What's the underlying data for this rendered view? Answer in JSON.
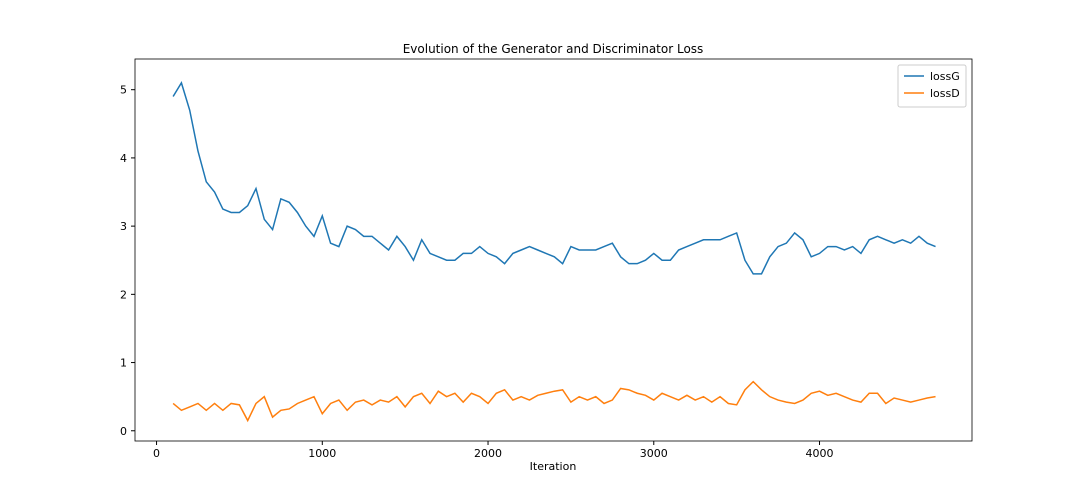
{
  "chart_data": {
    "type": "line",
    "title": "Evolution of the Generator and Discriminator Loss",
    "xlabel": "Iteration",
    "x": [
      100,
      150,
      200,
      250,
      300,
      350,
      400,
      450,
      500,
      550,
      600,
      650,
      700,
      750,
      800,
      850,
      900,
      950,
      1000,
      1050,
      1100,
      1150,
      1200,
      1250,
      1300,
      1350,
      1400,
      1450,
      1500,
      1550,
      1600,
      1650,
      1700,
      1750,
      1800,
      1850,
      1900,
      1950,
      2000,
      2050,
      2100,
      2150,
      2200,
      2250,
      2300,
      2350,
      2400,
      2450,
      2500,
      2550,
      2600,
      2650,
      2700,
      2750,
      2800,
      2850,
      2900,
      2950,
      3000,
      3050,
      3100,
      3150,
      3200,
      3250,
      3300,
      3350,
      3400,
      3450,
      3500,
      3550,
      3600,
      3650,
      3700,
      3750,
      3800,
      3850,
      3900,
      3950,
      4000,
      4050,
      4100,
      4150,
      4200,
      4250,
      4300,
      4350,
      4400,
      4450,
      4500,
      4550,
      4600,
      4650,
      4700
    ],
    "series": [
      {
        "name": "lossG",
        "color": "#1f77b4",
        "values": [
          4.9,
          5.1,
          4.7,
          4.1,
          3.65,
          3.5,
          3.25,
          3.2,
          3.2,
          3.3,
          3.55,
          3.1,
          2.95,
          3.4,
          3.35,
          3.2,
          3.0,
          2.85,
          3.15,
          2.75,
          2.7,
          3.0,
          2.95,
          2.85,
          2.85,
          2.75,
          2.65,
          2.85,
          2.7,
          2.5,
          2.8,
          2.6,
          2.55,
          2.5,
          2.5,
          2.6,
          2.6,
          2.7,
          2.6,
          2.55,
          2.45,
          2.6,
          2.65,
          2.7,
          2.65,
          2.6,
          2.55,
          2.45,
          2.7,
          2.65,
          2.65,
          2.65,
          2.7,
          2.75,
          2.55,
          2.45,
          2.45,
          2.5,
          2.6,
          2.5,
          2.5,
          2.65,
          2.7,
          2.75,
          2.8,
          2.8,
          2.8,
          2.85,
          2.9,
          2.5,
          2.3,
          2.3,
          2.55,
          2.7,
          2.75,
          2.9,
          2.8,
          2.55,
          2.6,
          2.7,
          2.7,
          2.65,
          2.7,
          2.6,
          2.8,
          2.85,
          2.8,
          2.75,
          2.8,
          2.75,
          2.85,
          2.75,
          2.7
        ]
      },
      {
        "name": "lossD",
        "color": "#ff7f0e",
        "values": [
          0.4,
          0.3,
          0.35,
          0.4,
          0.3,
          0.4,
          0.3,
          0.4,
          0.38,
          0.15,
          0.4,
          0.5,
          0.2,
          0.3,
          0.32,
          0.4,
          0.45,
          0.5,
          0.25,
          0.4,
          0.45,
          0.3,
          0.42,
          0.45,
          0.38,
          0.45,
          0.42,
          0.5,
          0.35,
          0.5,
          0.55,
          0.4,
          0.58,
          0.5,
          0.55,
          0.42,
          0.55,
          0.5,
          0.4,
          0.55,
          0.6,
          0.45,
          0.5,
          0.45,
          0.52,
          0.55,
          0.58,
          0.6,
          0.42,
          0.5,
          0.45,
          0.5,
          0.4,
          0.45,
          0.62,
          0.6,
          0.55,
          0.52,
          0.45,
          0.55,
          0.5,
          0.45,
          0.52,
          0.45,
          0.5,
          0.42,
          0.5,
          0.4,
          0.38,
          0.6,
          0.72,
          0.6,
          0.5,
          0.45,
          0.42,
          0.4,
          0.45,
          0.55,
          0.58,
          0.52,
          0.55,
          0.5,
          0.45,
          0.42,
          0.55,
          0.55,
          0.4,
          0.48,
          0.45,
          0.42,
          0.45,
          0.48,
          0.5
        ]
      }
    ],
    "xlim": [
      -130,
      4920
    ],
    "xticks": [
      0,
      1000,
      2000,
      3000,
      4000
    ],
    "ylim": [
      -0.15,
      5.45
    ],
    "yticks": [
      0,
      1,
      2,
      3,
      4,
      5
    ],
    "legend": "upper right"
  }
}
